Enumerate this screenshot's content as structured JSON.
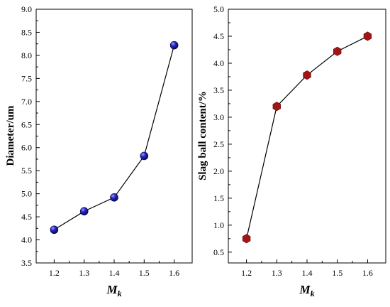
{
  "chart_data": [
    {
      "type": "line",
      "title": "",
      "xlabel_main": "M",
      "xlabel_sub": "k",
      "ylabel": "Diameter/um",
      "x": [
        1.2,
        1.3,
        1.4,
        1.5,
        1.6
      ],
      "xticks": [
        "1.2",
        "1.3",
        "1.4",
        "1.5",
        "1.6"
      ],
      "xlim": [
        1.14,
        1.66
      ],
      "ylim": [
        3.5,
        9.0
      ],
      "yticks": [
        "3.5",
        "4.0",
        "4.5",
        "5.0",
        "5.5",
        "6.0",
        "6.5",
        "7.0",
        "7.5",
        "8.0",
        "8.5",
        "9.0"
      ],
      "series": [
        {
          "values": [
            4.22,
            4.62,
            4.92,
            5.82,
            8.22
          ],
          "marker": "sphere",
          "color": "#1f1fa8"
        }
      ],
      "grid": false,
      "legend": "none"
    },
    {
      "type": "line",
      "title": "",
      "xlabel_main": "M",
      "xlabel_sub": "k",
      "ylabel": "Slag ball content/%",
      "x": [
        1.2,
        1.3,
        1.4,
        1.5,
        1.6
      ],
      "xticks": [
        "1.2",
        "1.3",
        "1.4",
        "1.5",
        "1.6"
      ],
      "xlim": [
        1.14,
        1.66
      ],
      "ylim": [
        0.3,
        5.0
      ],
      "yticks": [
        "0.5",
        "1.0",
        "1.5",
        "2.0",
        "2.5",
        "3.0",
        "3.5",
        "4.0",
        "4.5",
        "5.0"
      ],
      "series": [
        {
          "values": [
            0.75,
            3.2,
            3.78,
            4.22,
            4.5
          ],
          "marker": "hexagon",
          "color": "#a31515"
        }
      ],
      "grid": false,
      "legend": "none"
    }
  ]
}
